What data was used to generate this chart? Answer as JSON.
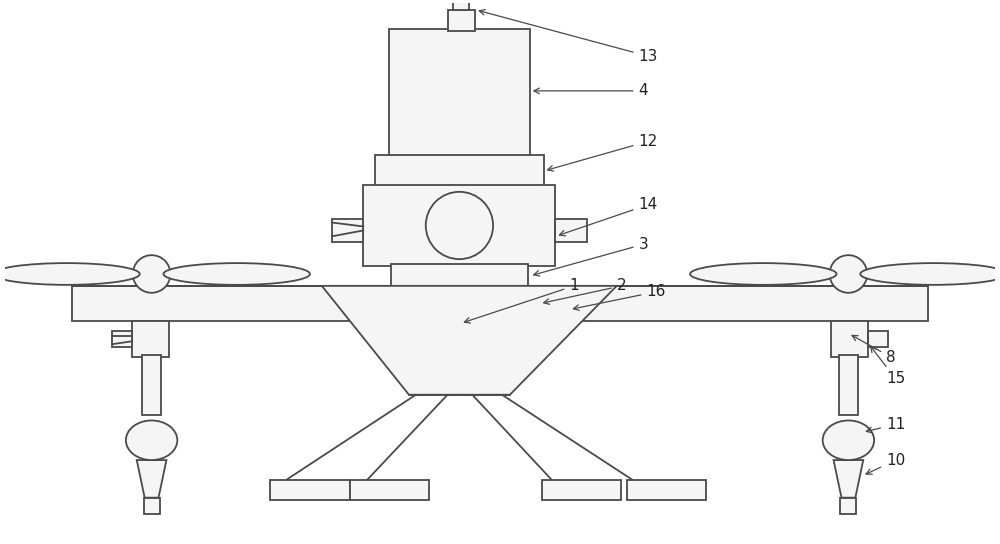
{
  "bg_color": "#ffffff",
  "line_color": "#4a4a4a",
  "lw": 1.3,
  "fig_width": 10.0,
  "fig_height": 5.44
}
